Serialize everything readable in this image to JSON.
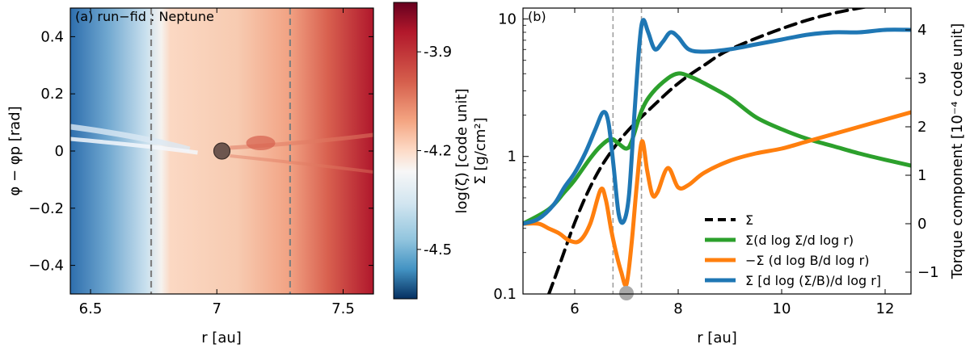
{
  "chart_data": [
    {
      "type": "heatmap",
      "panel_tag": "(a) run−fid : Neptune",
      "xlabel": "r [au]",
      "ylabel": "φ − φp [rad]",
      "xlim": [
        6.42,
        7.62
      ],
      "ylim": [
        -0.5,
        0.5
      ],
      "xticks": [
        6.5,
        7,
        7.5
      ],
      "xtick_labels": [
        "6.5",
        "7",
        "7.5"
      ],
      "yticks": [
        0.4,
        0.2,
        0,
        -0.2,
        -0.4
      ],
      "ytick_labels": [
        "0.4",
        "0.2",
        "0",
        "−0.2",
        "−0.4"
      ],
      "colorbar": {
        "label": "log(ζ) [code unit]",
        "range": [
          -4.65,
          -3.75
        ],
        "ticks": [
          -3.9,
          -4.2,
          -4.5
        ],
        "tick_labels": [
          "-3.9",
          "-4.2",
          "-4.5"
        ],
        "colormap": "RdBu_r"
      },
      "vlines": [
        6.74,
        7.29
      ],
      "planet": {
        "r": 7.02,
        "phi": 0.0
      },
      "colors": {
        "low": "#1f5fa8",
        "mid": "#f7f7f7",
        "high": "#b2182b",
        "vline": "#808080",
        "planet": "#5e4a44"
      }
    },
    {
      "type": "line",
      "panel_tag": "(b)",
      "xlabel": "r [au]",
      "ylabel_left": "Σ [g/cm²]",
      "ylabel_right": "Torque component [10⁻⁴ code unit]",
      "xlim": [
        5.0,
        12.5
      ],
      "ylim_left": [
        0.1,
        12
      ],
      "yscale_left": "log",
      "ylim_right": [
        -1.45,
        4.45
      ],
      "xticks": [
        6,
        8,
        10,
        12
      ],
      "xtick_labels": [
        "6",
        "8",
        "10",
        "12"
      ],
      "yticks_left": [
        0.1,
        1,
        10
      ],
      "ytick_labels_left": [
        "0.1",
        "1",
        "10"
      ],
      "yticks_right": [
        -1,
        0,
        1,
        2,
        3,
        4
      ],
      "ytick_labels_right": [
        "−1",
        "0",
        "1",
        "2",
        "3",
        "4"
      ],
      "vlines": [
        6.74,
        7.29
      ],
      "planet_marker": {
        "r": 7.0,
        "torque": -1.45
      },
      "series": [
        {
          "name": "Σ",
          "axis": "left",
          "style": "dashed",
          "color": "#000000",
          "x": [
            5.5,
            5.7,
            6.0,
            6.3,
            6.6,
            7.0,
            7.5,
            8.0,
            8.5,
            9.0,
            10.0,
            11.0,
            12.5
          ],
          "y": [
            0.1,
            0.16,
            0.33,
            0.6,
            0.95,
            1.5,
            2.3,
            3.4,
            4.6,
            6.0,
            8.5,
            11.0,
            14.0
          ]
        },
        {
          "name": "Σ(d log Σ/d log r)",
          "axis": "right",
          "color": "#2ca02c",
          "x": [
            5.0,
            5.5,
            5.8,
            6.0,
            6.3,
            6.5,
            6.7,
            6.85,
            7.0,
            7.1,
            7.3,
            7.5,
            7.8,
            8.0,
            8.2,
            8.5,
            9.0,
            9.5,
            10.0,
            10.5,
            11.0,
            11.5,
            12.0,
            12.5
          ],
          "y": [
            0.0,
            0.3,
            0.65,
            0.9,
            1.35,
            1.6,
            1.75,
            1.65,
            1.55,
            1.7,
            2.35,
            2.7,
            3.0,
            3.1,
            3.05,
            2.9,
            2.6,
            2.2,
            1.95,
            1.75,
            1.6,
            1.45,
            1.32,
            1.2
          ]
        },
        {
          "name": "−Σ (d log B/d log r)",
          "axis": "right",
          "color": "#ff7f0e",
          "x": [
            5.0,
            5.3,
            5.5,
            5.7,
            5.9,
            6.1,
            6.3,
            6.5,
            6.6,
            6.7,
            6.8,
            6.9,
            7.0,
            7.1,
            7.2,
            7.3,
            7.4,
            7.5,
            7.6,
            7.8,
            8.0,
            8.2,
            8.5,
            9.0,
            9.5,
            10.0,
            10.5,
            11.0,
            11.5,
            12.0,
            12.5
          ],
          "y": [
            0.0,
            0.0,
            -0.1,
            -0.2,
            -0.35,
            -0.35,
            0.0,
            0.7,
            0.5,
            -0.1,
            -0.6,
            -1.0,
            -1.25,
            -0.4,
            0.8,
            1.7,
            1.1,
            0.6,
            0.65,
            1.15,
            0.75,
            0.8,
            1.05,
            1.3,
            1.45,
            1.55,
            1.7,
            1.85,
            2.0,
            2.15,
            2.3
          ]
        },
        {
          "name": "Σ [d log (Σ/B)/d log r]",
          "axis": "right",
          "color": "#1f77b4",
          "x": [
            5.0,
            5.3,
            5.6,
            5.8,
            6.0,
            6.2,
            6.4,
            6.55,
            6.65,
            6.75,
            6.85,
            6.95,
            7.05,
            7.15,
            7.25,
            7.32,
            7.42,
            7.55,
            7.7,
            7.85,
            8.0,
            8.2,
            8.5,
            9.0,
            9.5,
            10.0,
            10.5,
            11.0,
            11.5,
            12.0,
            12.5
          ],
          "y": [
            0.0,
            0.1,
            0.4,
            0.75,
            1.05,
            1.45,
            1.95,
            2.3,
            2.1,
            1.2,
            0.2,
            0.05,
            0.6,
            2.2,
            3.7,
            4.2,
            3.95,
            3.6,
            3.75,
            3.95,
            3.85,
            3.6,
            3.55,
            3.6,
            3.7,
            3.8,
            3.9,
            3.95,
            3.95,
            4.0,
            4.0
          ]
        }
      ],
      "legend_placement": "lower-right",
      "colors": {
        "vline": "#a0a0a0",
        "planet": "#a9a9a9"
      }
    }
  ]
}
